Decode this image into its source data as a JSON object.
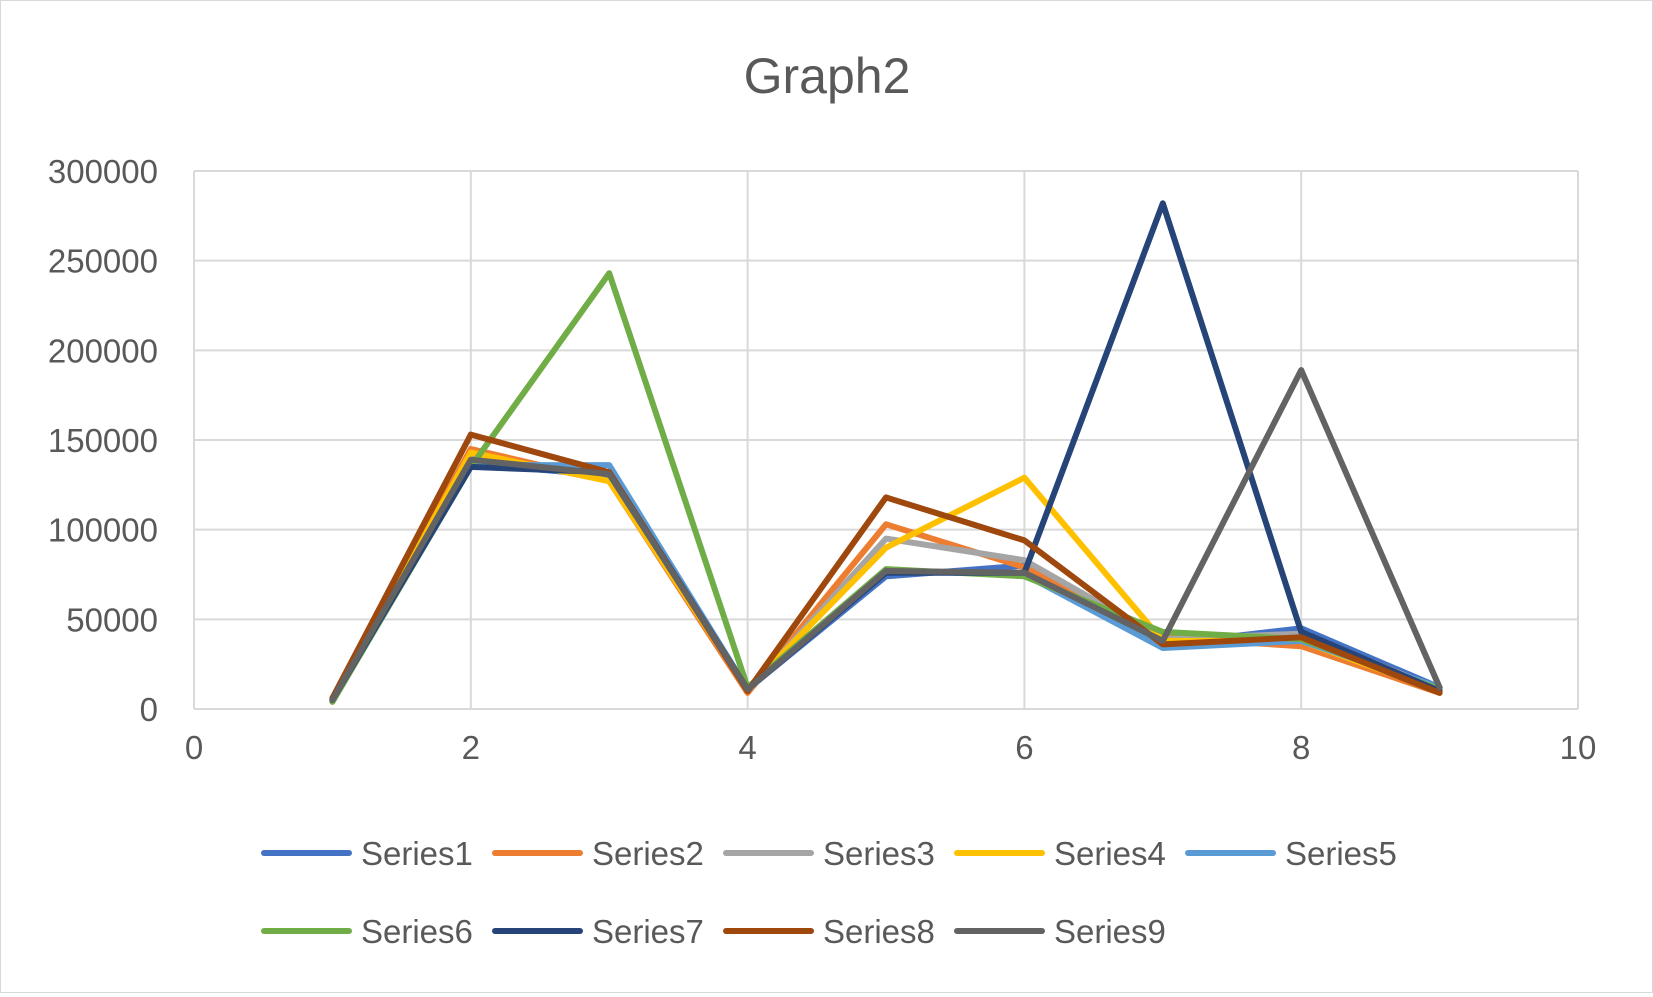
{
  "chart_data": {
    "type": "line",
    "title": "Graph2",
    "xlabel": "",
    "ylabel": "",
    "xlim": [
      0,
      10
    ],
    "ylim": [
      0,
      300000
    ],
    "x_ticks": [
      "0",
      "2",
      "4",
      "6",
      "8",
      "10"
    ],
    "y_ticks": [
      "0",
      "50000",
      "100000",
      "150000",
      "200000",
      "250000",
      "300000"
    ],
    "grid": "on",
    "legend_position": "bottom",
    "x": [
      1,
      2,
      3,
      4,
      5,
      6,
      7,
      8,
      9
    ],
    "series": [
      {
        "name": "Series1",
        "color": "#4472C4",
        "values": [
          5000,
          137000,
          130000,
          11000,
          74000,
          80000,
          36000,
          45000,
          12000
        ]
      },
      {
        "name": "Series2",
        "color": "#ED7D31",
        "values": [
          5000,
          145000,
          127000,
          9000,
          103000,
          79000,
          40000,
          35000,
          9000
        ]
      },
      {
        "name": "Series3",
        "color": "#A5A5A5",
        "values": [
          4000,
          140000,
          131000,
          10000,
          95000,
          83000,
          39000,
          42000,
          11000
        ]
      },
      {
        "name": "Series4",
        "color": "#FFC000",
        "values": [
          5000,
          143000,
          127000,
          11000,
          90000,
          129000,
          38000,
          38000,
          10000
        ]
      },
      {
        "name": "Series5",
        "color": "#5B9BD5",
        "values": [
          5000,
          136000,
          136000,
          11000,
          77000,
          75000,
          34000,
          38000,
          12000
        ]
      },
      {
        "name": "Series6",
        "color": "#70AD47",
        "values": [
          4000,
          135000,
          243000,
          12000,
          78000,
          74000,
          43000,
          39000,
          11000
        ]
      },
      {
        "name": "Series7",
        "color": "#264478",
        "values": [
          5000,
          135000,
          132000,
          11000,
          76000,
          76000,
          282000,
          43000,
          10000
        ]
      },
      {
        "name": "Series8",
        "color": "#9E480E",
        "values": [
          6000,
          153000,
          132000,
          10000,
          118000,
          94000,
          36000,
          40000,
          9000
        ]
      },
      {
        "name": "Series9",
        "color": "#636363",
        "values": [
          5000,
          139000,
          131000,
          11000,
          77000,
          76000,
          38000,
          189000,
          12000
        ]
      }
    ]
  }
}
